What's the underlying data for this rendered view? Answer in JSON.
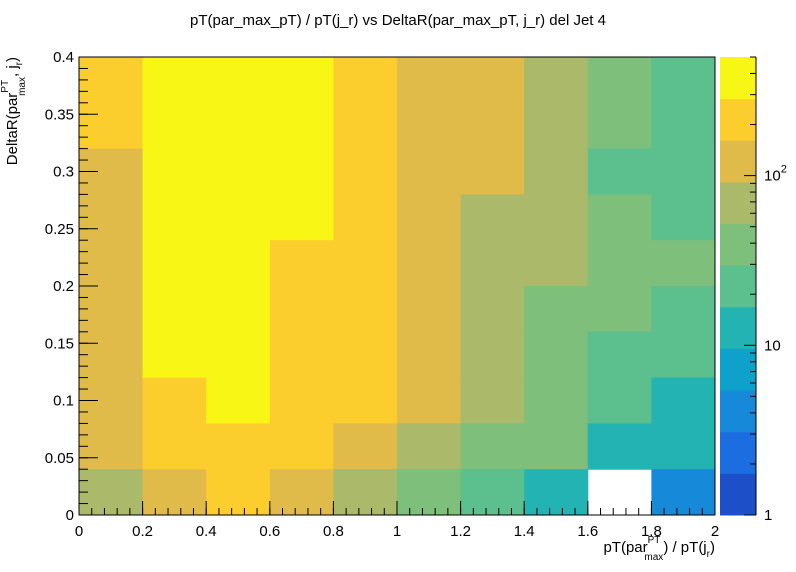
{
  "chart_data": {
    "type": "heatmap",
    "title": "pT(par_max_pT) / pT(j_r) vs DeltaR(par_max_pT, j_r) del Jet 4",
    "xlabel": {
      "base": "pT(par",
      "sup": "PT",
      "sub": "max",
      "mid": ") / pT(j",
      "sub2": "r",
      "end": ")"
    },
    "ylabel": {
      "base": "DeltaR(par",
      "sup": "PT",
      "sub": "max",
      "mid": ", j",
      "sub2": "r",
      "end": ")"
    },
    "xlim": [
      0,
      2
    ],
    "ylim": [
      0,
      0.4
    ],
    "x_ticks": [
      "0",
      "0.2",
      "0.4",
      "0.6",
      "0.8",
      "1",
      "1.2",
      "1.4",
      "1.6",
      "1.8",
      "2"
    ],
    "y_ticks": [
      "0",
      "0.05",
      "0.1",
      "0.15",
      "0.2",
      "0.25",
      "0.3",
      "0.35",
      "0.4"
    ],
    "x_edges": [
      0,
      0.2,
      0.4,
      0.6,
      0.8,
      1.0,
      1.2,
      1.4,
      1.6,
      1.8,
      2.0
    ],
    "y_edges": [
      0,
      0.04,
      0.08,
      0.12,
      0.16,
      0.2,
      0.24,
      0.28,
      0.32,
      0.36,
      0.4
    ],
    "z_scale": "log",
    "z_range": [
      1,
      500
    ],
    "z_ticks": [
      {
        "label": "1",
        "value": 1
      },
      {
        "label": "10",
        "value": 10
      },
      {
        "label": "10",
        "sup": "2",
        "value": 100
      }
    ],
    "color_levels": [
      "#1d4fc9",
      "#1c6ee0",
      "#1689d9",
      "#0da1cc",
      "#22b3b2",
      "#5bbf8e",
      "#7dbf7b",
      "#aab96a",
      "#e0bb4a",
      "#fcce2d",
      "#f7f614"
    ],
    "grid": false,
    "rows_top_to_bottom": [
      [
        200,
        850,
        850,
        850,
        200,
        110,
        110,
        55,
        35,
        20
      ],
      [
        200,
        850,
        850,
        850,
        200,
        110,
        110,
        55,
        35,
        20
      ],
      [
        110,
        850,
        850,
        850,
        200,
        110,
        110,
        55,
        20,
        20
      ],
      [
        110,
        850,
        850,
        850,
        200,
        110,
        55,
        55,
        35,
        20
      ],
      [
        110,
        850,
        850,
        200,
        200,
        110,
        55,
        55,
        35,
        35
      ],
      [
        110,
        850,
        850,
        200,
        200,
        110,
        55,
        35,
        35,
        20
      ],
      [
        110,
        850,
        850,
        200,
        200,
        110,
        55,
        35,
        20,
        20
      ],
      [
        110,
        200,
        850,
        200,
        200,
        110,
        55,
        35,
        20,
        10
      ],
      [
        110,
        200,
        200,
        200,
        110,
        55,
        35,
        35,
        10,
        10
      ],
      [
        55,
        110,
        200,
        110,
        55,
        35,
        20,
        10,
        null,
        4
      ]
    ]
  }
}
